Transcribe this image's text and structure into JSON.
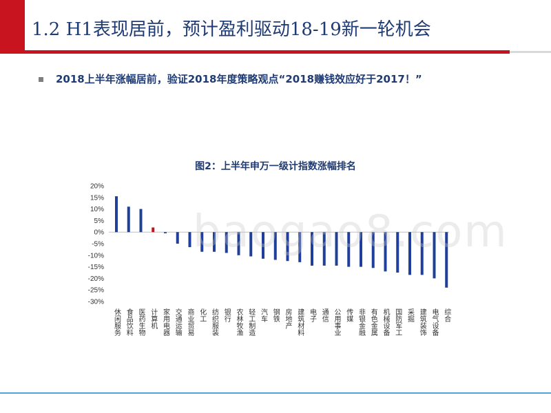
{
  "slide": {
    "title": "1.2 H1表现居前，预计盈利驱动18-19新一轮机会",
    "bullet": "2018上半年涨幅居前，验证2018年度策略观点“2018赚钱效应好于2017！”",
    "watermark": "baogao8.com"
  },
  "colors": {
    "brand_red": "#c8141e",
    "title_blue": "#1f3b73",
    "bar_blue": "#1f3f9a",
    "bar_red": "#c0141c"
  },
  "chart_data": {
    "type": "bar",
    "title": "图2：上半年申万一级计指数涨幅排名",
    "categories": [
      "休闲服务",
      "食品饮料",
      "医药生物",
      "计算机",
      "家用电器",
      "交通运输",
      "商业贸易",
      "化工",
      "纺织服装",
      "银行",
      "农林牧渔",
      "轻工制造",
      "汽车",
      "钢铁",
      "房地产",
      "建筑材料",
      "电子",
      "通信",
      "公用事业",
      "传媒",
      "非银金融",
      "有色金属",
      "机械设备",
      "国防军工",
      "采掘",
      "建筑装饰",
      "电气设备",
      "综合"
    ],
    "values": [
      15.5,
      11,
      10,
      2,
      -0.5,
      -5,
      -6.5,
      -8.5,
      -8.5,
      -9,
      -10,
      -10.5,
      -11.5,
      -12,
      -12.5,
      -13,
      -14.5,
      -14.5,
      -14.5,
      -15,
      -15,
      -15.5,
      -17,
      -17.5,
      -18.5,
      -18.5,
      -20,
      -24
    ],
    "highlight_categories": [
      "计算机"
    ],
    "yticks": [
      "20%",
      "15%",
      "10%",
      "5%",
      "0%",
      "-5%",
      "-10%",
      "-15%",
      "-20%",
      "-25%",
      "-30%"
    ],
    "ylim": [
      -30,
      20
    ],
    "grid": false,
    "legend": "none"
  }
}
